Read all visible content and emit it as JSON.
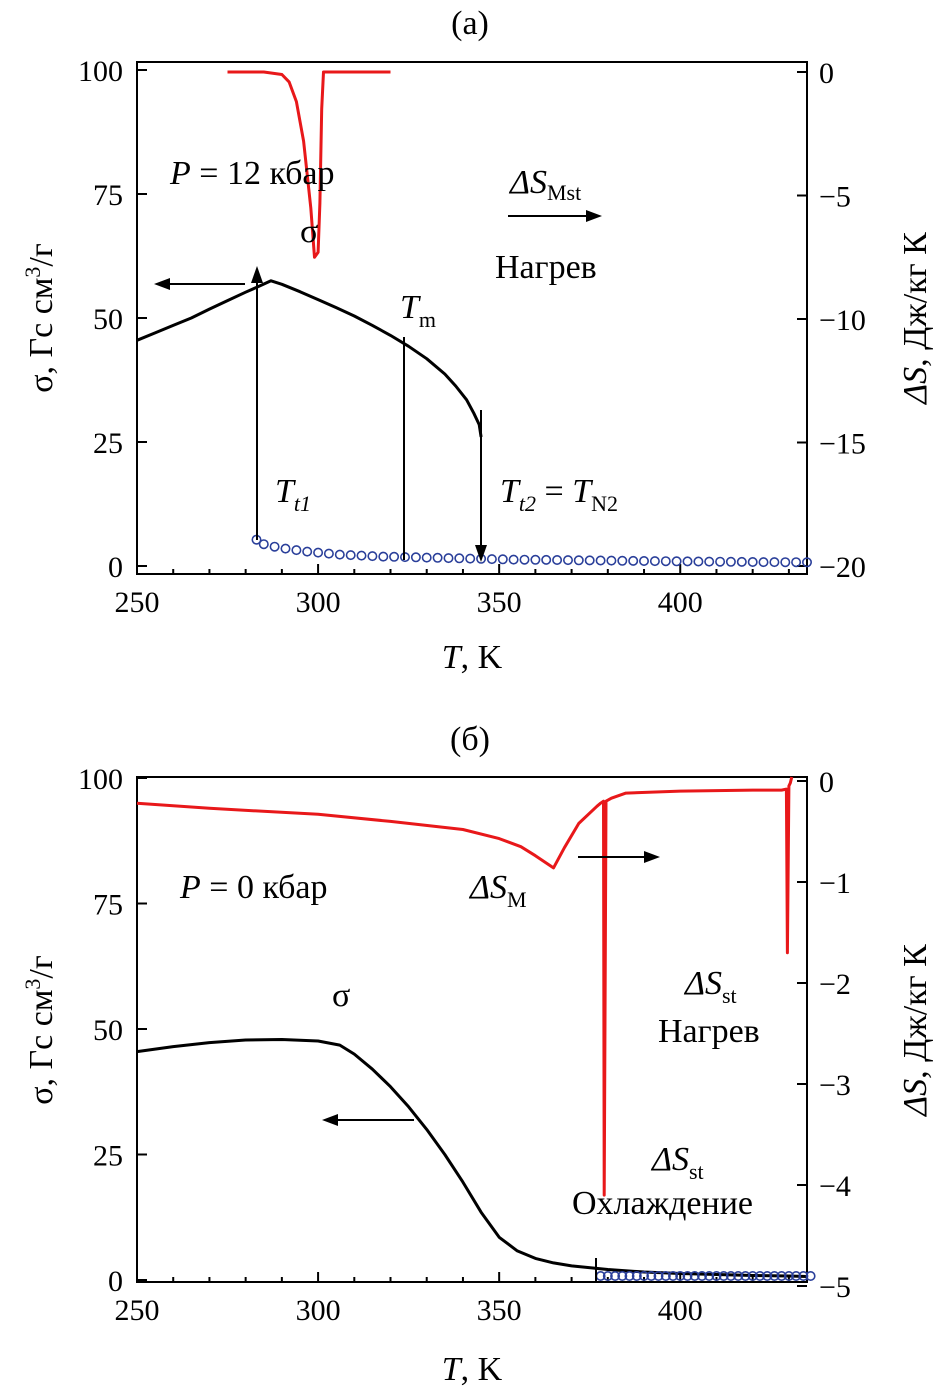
{
  "colors": {
    "sigma": "#000000",
    "deltaS": "#e8181a",
    "circles": "#2a3f9a"
  },
  "chart_data": [
    {
      "panel_label": "(а)",
      "type": "line",
      "xlabel": {
        "sym": "T",
        "rest": ", K"
      },
      "ylabel_left": {
        "greek": "σ, Гс см",
        "sup": "3",
        "tail": "/г"
      },
      "ylabel_right": {
        "sym": "ΔS",
        "rest": ", Дж/кг К"
      },
      "xlim": [
        250,
        435
      ],
      "ylim_left": [
        0,
        100
      ],
      "ylim_right": [
        -20,
        0
      ],
      "xticks": [
        "250",
        "300",
        "350",
        "400"
      ],
      "yticks_left": [
        "0",
        "25",
        "50",
        "75",
        "100"
      ],
      "yticks_right": [
        "0",
        "−5",
        "−10",
        "−15",
        "−20"
      ],
      "annotations": {
        "pressure": {
          "sym": "P",
          "rest": " = 12 кбар"
        },
        "sigma": "σ",
        "ds_sym": "ΔS",
        "ds_sub": "Mst",
        "heat": "Нагрев",
        "tm_sym": "T",
        "tm_sub": "m",
        "tt1_sym": "T",
        "tt1_sub": "t1",
        "tt2": {
          "a": "T",
          "a_sub": "t2",
          "eq": " = ",
          "b": "T",
          "b_sub": "N2"
        }
      },
      "series": [
        {
          "axis": "left",
          "style": "line",
          "x": [
            250,
            255,
            260,
            265,
            270,
            275,
            280,
            284,
            287,
            290,
            295,
            300,
            305,
            310,
            315,
            320,
            325,
            330,
            335,
            338,
            341,
            343,
            344.5,
            345
          ],
          "y": [
            45.5,
            47,
            48.5,
            50,
            51.8,
            53.5,
            55.2,
            56.5,
            57.5,
            56.8,
            55.3,
            53.7,
            52.1,
            50.4,
            48.5,
            46.5,
            44.3,
            41.8,
            38.7,
            36.3,
            33.5,
            30.8,
            28.5,
            26
          ]
        },
        {
          "axis": "left",
          "style": "markers",
          "x": [
            283,
            285,
            288,
            291,
            294,
            297,
            300,
            303,
            306,
            309,
            312,
            315,
            318,
            321,
            324,
            327,
            330,
            333,
            336,
            339,
            342,
            345,
            348,
            351,
            354,
            357,
            360,
            363,
            366,
            369,
            372,
            375,
            378,
            381,
            384,
            387,
            390,
            393,
            396,
            399,
            402,
            405,
            408,
            411,
            414,
            417,
            420,
            423,
            426,
            429,
            432,
            435
          ],
          "y": [
            5.3,
            4.4,
            3.9,
            3.5,
            3.2,
            2.9,
            2.7,
            2.5,
            2.3,
            2.2,
            2.1,
            2.0,
            1.9,
            1.85,
            1.8,
            1.75,
            1.7,
            1.65,
            1.6,
            1.55,
            1.5,
            1.45,
            1.4,
            1.35,
            1.3,
            1.28,
            1.25,
            1.22,
            1.2,
            1.18,
            1.15,
            1.12,
            1.1,
            1.08,
            1.05,
            1.03,
            1.0,
            0.98,
            0.96,
            0.94,
            0.92,
            0.9,
            0.88,
            0.86,
            0.84,
            0.82,
            0.8,
            0.79,
            0.78,
            0.77,
            0.76,
            0.75
          ]
        },
        {
          "axis": "right",
          "style": "line",
          "x": [
            275,
            285,
            290,
            292,
            294,
            296,
            298,
            299,
            300,
            300.5,
            301,
            301.5,
            302,
            320
          ],
          "y": [
            0,
            0,
            -0.1,
            -0.4,
            -1.2,
            -2.8,
            -5.5,
            -7.5,
            -7.3,
            -5.3,
            -1.5,
            0,
            0,
            0
          ]
        }
      ]
    },
    {
      "panel_label": "(б)",
      "type": "line",
      "xlabel": {
        "sym": "T",
        "rest": ", K"
      },
      "ylabel_left": {
        "greek": "σ, Гс см",
        "sup": "3",
        "tail": "/г"
      },
      "ylabel_right": {
        "sym": "ΔS",
        "rest": ", Дж/кг К"
      },
      "xlim": [
        250,
        435
      ],
      "ylim_left": [
        0,
        100
      ],
      "ylim_right": [
        -5,
        0
      ],
      "xticks": [
        "250",
        "300",
        "350",
        "400"
      ],
      "yticks_left": [
        "0",
        "25",
        "50",
        "75",
        "100"
      ],
      "yticks_right": [
        "0",
        "−1",
        "−2",
        "−3",
        "−4",
        "−5"
      ],
      "annotations": {
        "pressure": {
          "sym": "P",
          "rest": " = 0 кбар"
        },
        "sigma": "σ",
        "dsm_sym": "ΔS",
        "dsm_sub": "M",
        "dsst_sym": "ΔS",
        "dsst_sub": "st",
        "heat": "Нагрев",
        "dsst2_sym": "ΔS",
        "dsst2_sub": "st",
        "cool": "Охлаждение"
      },
      "series": [
        {
          "axis": "left",
          "style": "line",
          "x": [
            250,
            260,
            270,
            280,
            290,
            300,
            306,
            310,
            315,
            320,
            325,
            330,
            335,
            340,
            345,
            350,
            355,
            360,
            365,
            370,
            380,
            390,
            400,
            410,
            420,
            430,
            435
          ],
          "y": [
            45.5,
            46.5,
            47.3,
            47.8,
            47.9,
            47.6,
            46.8,
            45,
            42,
            38.5,
            34.5,
            30,
            25,
            19.5,
            13.5,
            8.5,
            5.8,
            4.3,
            3.4,
            2.8,
            2.1,
            1.6,
            1.3,
            1.1,
            0.9,
            0.8,
            0.7
          ]
        },
        {
          "axis": "left",
          "style": "markers",
          "x": [
            378,
            380,
            382,
            384,
            386,
            388,
            390,
            392,
            394,
            396,
            398,
            400,
            402,
            404,
            406,
            408,
            410,
            412,
            414,
            416,
            418,
            420,
            422,
            424,
            426,
            428,
            430,
            432,
            434,
            436
          ],
          "y": [
            0.8,
            0.8,
            0.8,
            0.8,
            0.8,
            0.8,
            0.8,
            0.8,
            0.8,
            0.8,
            0.8,
            0.8,
            0.8,
            0.8,
            0.8,
            0.8,
            0.8,
            0.8,
            0.8,
            0.8,
            0.8,
            0.8,
            0.8,
            0.8,
            0.8,
            0.8,
            0.8,
            0.8,
            0.8,
            0.8
          ]
        },
        {
          "axis": "right",
          "style": "line",
          "x": [
            250,
            270,
            300,
            320,
            340,
            350,
            356,
            360,
            365,
            368,
            372,
            377,
            378,
            378.8,
            379,
            379.5,
            380,
            380.5,
            381,
            385,
            400,
            420,
            428,
            429.3,
            429.6,
            430,
            430.4,
            430.8
          ],
          "y": [
            -0.22,
            -0.27,
            -0.33,
            -0.4,
            -0.48,
            -0.57,
            -0.65,
            -0.74,
            -0.86,
            -0.66,
            -0.42,
            -0.25,
            -0.22,
            -0.2,
            -4.1,
            -0.2,
            -0.19,
            -0.18,
            -0.17,
            -0.12,
            -0.1,
            -0.09,
            -0.09,
            -0.08,
            -1.7,
            -0.05,
            -0.02,
            0.04
          ]
        }
      ]
    }
  ]
}
